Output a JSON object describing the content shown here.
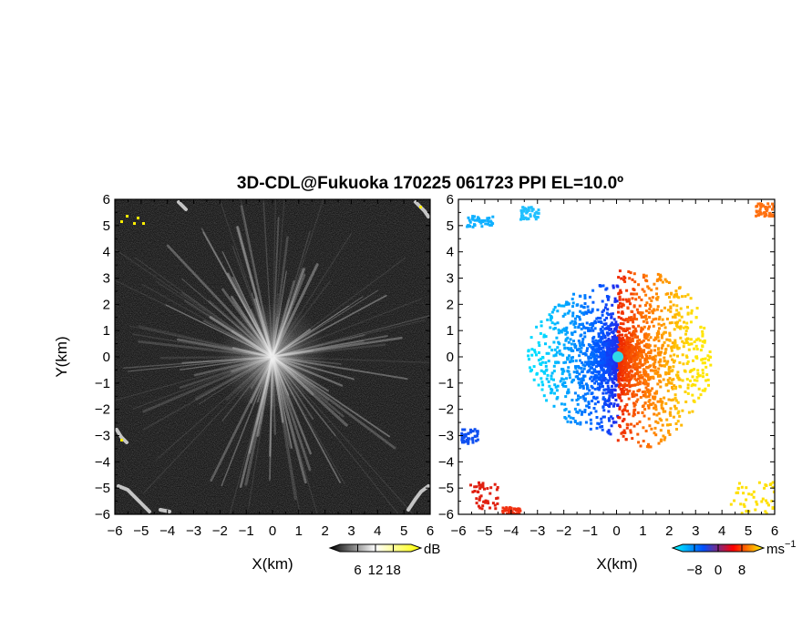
{
  "figure": {
    "title": "3D-CDL@Fukuoka 170225 061723 PPI EL=10.0º"
  },
  "chart_data": [
    {
      "type": "heatmap",
      "panel": "reflectivity",
      "xlabel": "X(km)",
      "ylabel": "Y(km)",
      "xlim": [
        -6,
        6
      ],
      "ylim": [
        -6,
        6
      ],
      "xticks": [
        "−6",
        "−5",
        "−4",
        "−3",
        "−2",
        "−1",
        "0",
        "1",
        "2",
        "3",
        "4",
        "5",
        "6"
      ],
      "yticks": [
        "6",
        "5",
        "4",
        "3",
        "2",
        "1",
        "0",
        "−1",
        "−2",
        "−3",
        "−4",
        "−5",
        "−6"
      ],
      "colorbar": {
        "unit": "dB",
        "ticks": [
          "6",
          "12",
          "18"
        ],
        "tick_values": [
          6,
          12,
          18
        ],
        "range": [
          0,
          24
        ],
        "colors": [
          "#000000",
          "#ffffff",
          "#ffff00"
        ]
      },
      "grid": false
    },
    {
      "type": "heatmap",
      "panel": "doppler velocity",
      "xlabel": "X(km)",
      "xlim": [
        -6,
        6
      ],
      "ylim": [
        -6,
        6
      ],
      "xticks": [
        "−6",
        "−5",
        "−4",
        "−3",
        "−2",
        "−1",
        "0",
        "1",
        "2",
        "3",
        "4",
        "5",
        "6"
      ],
      "yticks": [
        "6",
        "5",
        "4",
        "3",
        "2",
        "1",
        "0",
        "−1",
        "−2",
        "−3",
        "−4",
        "−5",
        "−6"
      ],
      "colorbar": {
        "unit": "ms",
        "unit_exponent": "−1",
        "ticks": [
          "−8",
          "0",
          "8"
        ],
        "tick_values": [
          -8,
          0,
          8
        ],
        "range": [
          -12,
          12
        ],
        "colors": [
          "#00ffff",
          "#0050ff",
          "#ff0000",
          "#ffff00"
        ]
      },
      "grid": false
    }
  ]
}
